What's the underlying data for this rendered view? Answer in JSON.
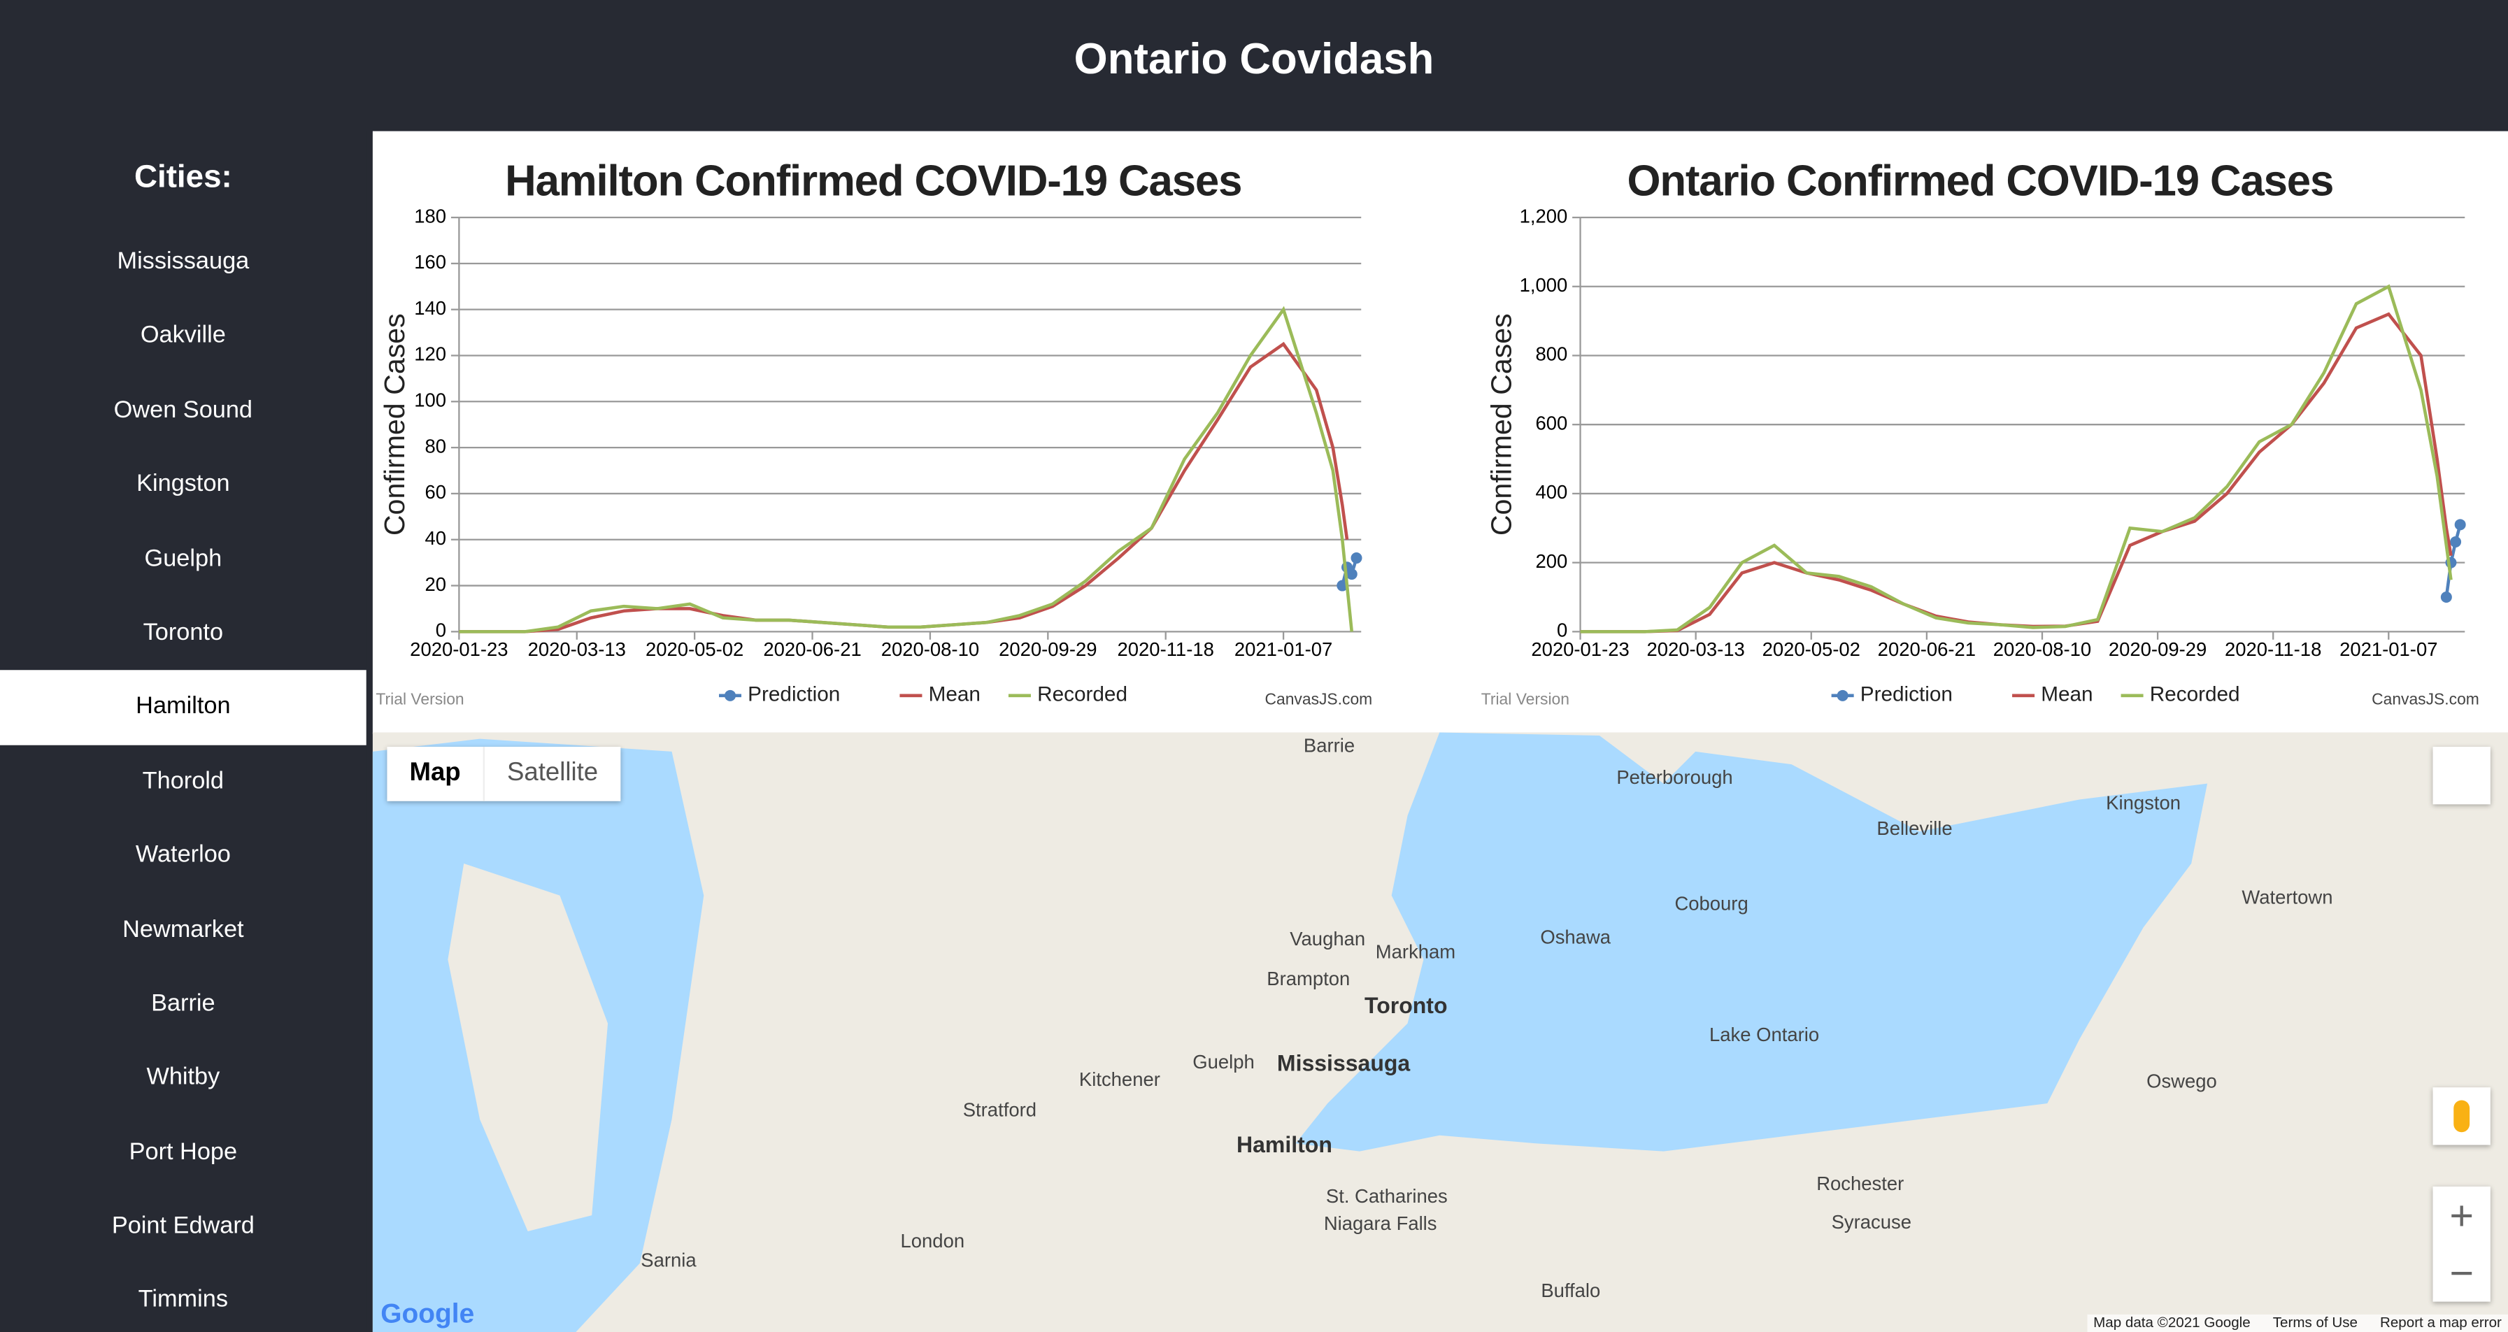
{
  "header": {
    "title": "Ontario Covidash"
  },
  "sidebar": {
    "heading": "Cities:",
    "cities": [
      "Mississauga",
      "Oakville",
      "Owen Sound",
      "Kingston",
      "Guelph",
      "Toronto",
      "Hamilton",
      "Thorold",
      "Waterloo",
      "Newmarket",
      "Barrie",
      "Whitby",
      "Port Hope",
      "Point Edward",
      "Timmins"
    ],
    "selected_index": 6
  },
  "chart_data": [
    {
      "type": "line",
      "title": "Hamilton Confirmed COVID-19 Cases",
      "y_label": "Confirmed Cases",
      "watermark": "Trial Version",
      "credit": "CanvasJS.com",
      "x": [
        "2020-01-23",
        "2020-02-06",
        "2020-02-20",
        "2020-03-05",
        "2020-03-19",
        "2020-04-02",
        "2020-04-16",
        "2020-04-30",
        "2020-05-14",
        "2020-05-28",
        "2020-06-11",
        "2020-06-25",
        "2020-07-09",
        "2020-07-23",
        "2020-08-06",
        "2020-08-20",
        "2020-09-03",
        "2020-09-17",
        "2020-10-01",
        "2020-10-15",
        "2020-10-29",
        "2020-11-12",
        "2020-11-26",
        "2020-12-10",
        "2020-12-24",
        "2021-01-07",
        "2021-01-21",
        "2021-01-28",
        "2021-02-01",
        "2021-02-03",
        "2021-02-05",
        "2021-02-07"
      ],
      "xlim": [
        "2020-01-23",
        "2021-02-09"
      ],
      "xticks": [
        "2020-01-23",
        "2020-03-13",
        "2020-05-02",
        "2020-06-21",
        "2020-08-10",
        "2020-09-29",
        "2020-11-18",
        "2021-01-07"
      ],
      "ylim": [
        0,
        180
      ],
      "yticks": [
        0,
        20,
        40,
        60,
        80,
        100,
        120,
        140,
        160,
        180
      ],
      "grid": true,
      "series": [
        {
          "name": "Prediction",
          "color": "#4f81bc",
          "markers": true,
          "values": [
            null,
            null,
            null,
            null,
            null,
            null,
            null,
            null,
            null,
            null,
            null,
            null,
            null,
            null,
            null,
            null,
            null,
            null,
            null,
            null,
            null,
            null,
            null,
            null,
            null,
            null,
            null,
            null,
            20,
            28,
            25,
            32
          ]
        },
        {
          "name": "Mean",
          "color": "#c0504d",
          "values": [
            0,
            0,
            0,
            1,
            6,
            9,
            10,
            10,
            7,
            5,
            5,
            4,
            3,
            2,
            2,
            3,
            4,
            6,
            11,
            20,
            32,
            45,
            70,
            92,
            115,
            125,
            105,
            80,
            55,
            40,
            null,
            null
          ]
        },
        {
          "name": "Recorded",
          "color": "#9bbb59",
          "values": [
            0,
            0,
            0,
            2,
            9,
            11,
            10,
            12,
            6,
            5,
            5,
            4,
            3,
            2,
            2,
            3,
            4,
            7,
            12,
            22,
            35,
            45,
            75,
            95,
            120,
            140,
            95,
            70,
            40,
            20,
            0,
            null
          ]
        }
      ]
    },
    {
      "type": "line",
      "title": "Ontario Confirmed COVID-19 Cases",
      "y_label": "Confirmed Cases",
      "watermark": "Trial Version",
      "credit": "CanvasJS.com",
      "x": [
        "2020-01-23",
        "2020-02-06",
        "2020-02-20",
        "2020-03-05",
        "2020-03-19",
        "2020-04-02",
        "2020-04-16",
        "2020-04-30",
        "2020-05-14",
        "2020-05-28",
        "2020-06-11",
        "2020-06-25",
        "2020-07-09",
        "2020-07-23",
        "2020-08-06",
        "2020-08-20",
        "2020-09-03",
        "2020-09-17",
        "2020-10-01",
        "2020-10-15",
        "2020-10-29",
        "2020-11-12",
        "2020-11-26",
        "2020-12-10",
        "2020-12-24",
        "2021-01-07",
        "2021-01-21",
        "2021-01-28",
        "2021-02-01",
        "2021-02-03",
        "2021-02-05",
        "2021-02-07"
      ],
      "xlim": [
        "2020-01-23",
        "2021-02-09"
      ],
      "xticks": [
        "2020-01-23",
        "2020-03-13",
        "2020-05-02",
        "2020-06-21",
        "2020-08-10",
        "2020-09-29",
        "2020-11-18",
        "2021-01-07"
      ],
      "ylim": [
        0,
        1200
      ],
      "yticks": [
        0,
        200,
        400,
        600,
        800,
        {
          "value": 1000,
          "label": "1,000"
        },
        {
          "value": 1200,
          "label": "1,200"
        }
      ],
      "grid": true,
      "series": [
        {
          "name": "Prediction",
          "color": "#4f81bc",
          "markers": true,
          "values": [
            null,
            null,
            null,
            null,
            null,
            null,
            null,
            null,
            null,
            null,
            null,
            null,
            null,
            null,
            null,
            null,
            null,
            null,
            null,
            null,
            null,
            null,
            null,
            null,
            null,
            null,
            null,
            null,
            100,
            200,
            260,
            310
          ]
        },
        {
          "name": "Mean",
          "color": "#c0504d",
          "values": [
            0,
            0,
            0,
            3,
            50,
            170,
            200,
            170,
            150,
            120,
            80,
            45,
            28,
            20,
            15,
            16,
            30,
            250,
            290,
            320,
            400,
            520,
            600,
            720,
            880,
            920,
            800,
            500,
            300,
            220,
            null,
            null
          ]
        },
        {
          "name": "Recorded",
          "color": "#9bbb59",
          "values": [
            0,
            0,
            0,
            5,
            70,
            200,
            250,
            170,
            160,
            130,
            80,
            40,
            25,
            20,
            12,
            15,
            35,
            300,
            290,
            330,
            420,
            550,
            600,
            750,
            950,
            1000,
            700,
            450,
            250,
            150,
            null,
            null
          ]
        }
      ]
    }
  ],
  "map": {
    "buttons": [
      "Map",
      "Satellite"
    ],
    "labels": [
      "Toronto",
      "Mississauga",
      "Hamilton",
      "Lake Ontario",
      "Kitchener",
      "Guelph",
      "London",
      "Barrie",
      "Oshawa",
      "Kingston",
      "Belleville",
      "Peterborough",
      "Brampton",
      "Vaughan",
      "Markham",
      "St. Catharines",
      "Niagara Falls",
      "Buffalo",
      "Rochester",
      "Syracuse",
      "Sarnia",
      "Stratford",
      "Watertown",
      "Oswego",
      "Cobourg"
    ],
    "logo": "Google",
    "footer": [
      "Map data ©2021 Google",
      "Terms of Use",
      "Report a map error"
    ]
  }
}
